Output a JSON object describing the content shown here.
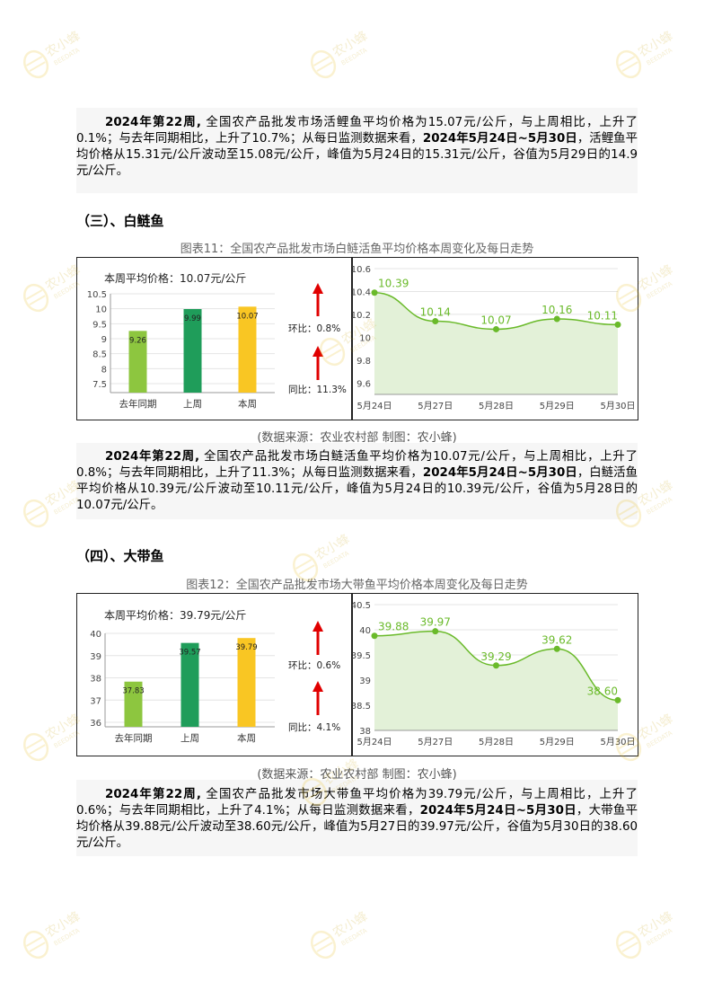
{
  "watermark": {
    "text": "农小蜂",
    "sub": "BEEDATA"
  },
  "para_carp": {
    "p1": "2024年第22周,",
    "p2": " 全国农产品批发市场活鲤鱼平均价格为15.07元/公斤，与上周相比，上升了0.1%；与去年同期相比，上升了10.7%；从每日监测数据来看，",
    "p3": "2024年5月24日~5月30日",
    "p4": "，活鲤鱼平均价格从15.31元/公斤波动至15.08元/公斤，峰值为5月24日的15.31元/公斤，谷值为5月29日的14.9元/公斤。"
  },
  "section3": {
    "title": "（三）、白鲢鱼"
  },
  "fig11": {
    "caption": "图表11：全国农产品批发市场白鲢活鱼平均价格本周变化及每日走势",
    "source": "(数据来源：农业农村部    制图：农小蜂)",
    "weekly_avg_label": "本周平均价格：10.07元/公斤",
    "hb_label": "环比：0.8%",
    "tb_label": "同比：11.3%"
  },
  "para_silver": {
    "p1": "2024年第22周,",
    "p2": " 全国农产品批发市场白鲢活鱼平均价格为10.07元/公斤，与上周相比，上升了0.8%；与去年同期相比，上升了11.3%；从每日监测数据来看，",
    "p3": "2024年5月24日~5月30日",
    "p4": "，白鲢活鱼平均价格从10.39元/公斤波动至10.11元/公斤，峰值为5月24日的10.39元/公斤，谷值为5月28日的10.07元/公斤。"
  },
  "section4": {
    "title": "（四）、大带鱼"
  },
  "fig12": {
    "caption": "图表12：全国农产品批发市场大带鱼平均价格本周变化及每日走势",
    "source": "(数据来源：农业农村部    制图：农小蜂)",
    "weekly_avg_label": "本周平均价格：39.79元/公斤",
    "hb_label": "环比：0.6%",
    "tb_label": "同比：4.1%"
  },
  "para_hairtail": {
    "p1": "2024年第22周,",
    "p2": " 全国农产品批发市场大带鱼平均价格为39.79元/公斤，与上周相比，上升了0.6%；与去年同期相比，上升了4.1%；从每日监测数据来看，",
    "p3": "2024年5月24日~5月30日",
    "p4": "，大带鱼平均价格从39.88元/公斤波动至38.60元/公斤，峰值为5月27日的39.97元/公斤，谷值为5月30日的38.60元/公斤。"
  },
  "colors": {
    "bar_last_year": "#8dc63f",
    "bar_last_week": "#1f9d5a",
    "bar_this_week": "#f9c623",
    "line": "#6aba2a",
    "area": "#e3f1d8",
    "arrow": "#e00000"
  },
  "chart_data": [
    {
      "type": "bar",
      "categories": [
        "去年同期",
        "上周",
        "本周"
      ],
      "values": [
        9.26,
        9.99,
        10.07
      ],
      "ylim": [
        7.2,
        10.5
      ],
      "yticks": [
        7.5,
        8,
        8.5,
        9,
        9.5,
        10,
        10.5
      ]
    },
    {
      "type": "area",
      "x": [
        "5月24日",
        "5月27日",
        "5月28日",
        "5月29日",
        "5月30日"
      ],
      "values": [
        10.39,
        10.14,
        10.07,
        10.16,
        10.11
      ],
      "labels": [
        "10.39",
        "10.14",
        "10.07",
        "10.16",
        "10.11"
      ],
      "ylim": [
        9.5,
        10.6
      ],
      "yticks": [
        9.6,
        9.8,
        10,
        10.2,
        10.4,
        10.6
      ]
    },
    {
      "type": "bar",
      "categories": [
        "去年同期",
        "上周",
        "本周"
      ],
      "values": [
        37.83,
        39.57,
        39.79
      ],
      "ylim": [
        35.8,
        40
      ],
      "yticks": [
        36,
        37,
        38,
        39,
        40
      ]
    },
    {
      "type": "area",
      "x": [
        "5月24日",
        "5月27日",
        "5月28日",
        "5月29日",
        "5月30日"
      ],
      "values": [
        39.88,
        39.97,
        39.29,
        39.62,
        38.6
      ],
      "labels": [
        "39.88",
        "39.97",
        "39.29",
        "39.62",
        "38.60"
      ],
      "ylim": [
        38,
        40.5
      ],
      "yticks": [
        38,
        38.5,
        39,
        39.5,
        40,
        40.5
      ]
    }
  ]
}
